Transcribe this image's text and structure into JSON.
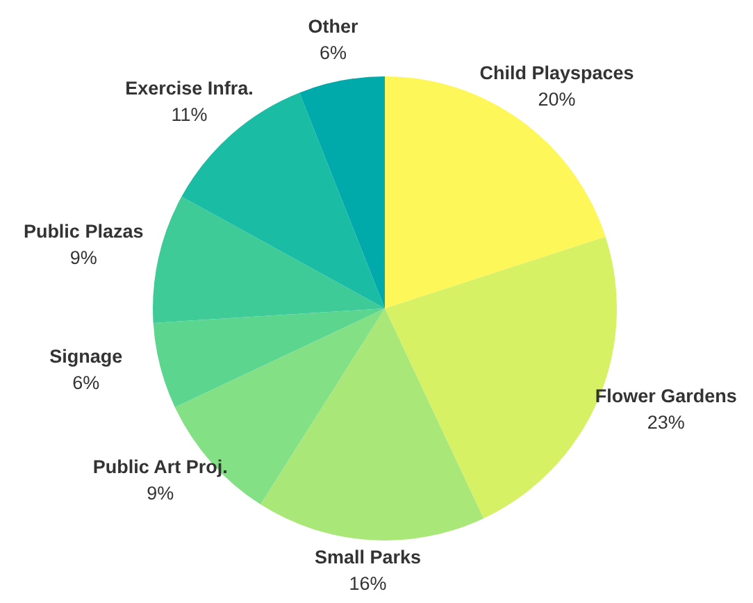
{
  "chart_data": {
    "type": "pie",
    "categories": [
      "Child Playspaces",
      "Flower Gardens",
      "Small Parks",
      "Public Art Proj.",
      "Signage",
      "Public Plazas",
      "Exercise Infra.",
      "Other"
    ],
    "values": [
      20,
      23,
      16,
      9,
      6,
      9,
      11,
      6
    ],
    "value_labels": [
      "20%",
      "23%",
      "16%",
      "9%",
      "6%",
      "9%",
      "11%",
      "6%"
    ],
    "colors": [
      "#fdf75a",
      "#d6f163",
      "#a9e878",
      "#84e084",
      "#5cd68f",
      "#3ecb98",
      "#1abca3",
      "#00aaaa"
    ]
  }
}
